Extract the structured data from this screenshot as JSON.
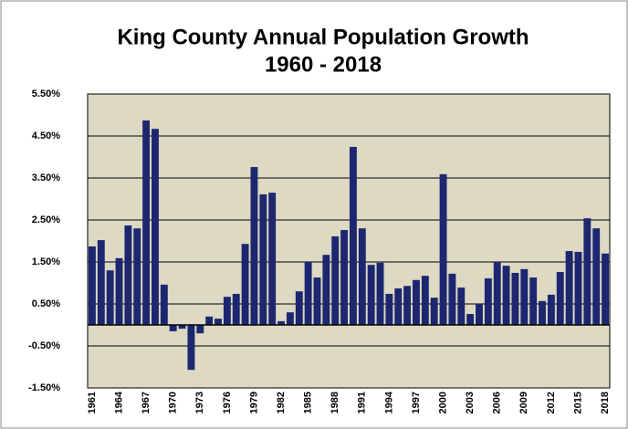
{
  "chart_data": {
    "type": "bar",
    "title": "King County Annual Population Growth",
    "subtitle": "1960 - 2018",
    "categories": [
      "1961",
      null,
      null,
      "1964",
      null,
      null,
      "1967",
      null,
      null,
      "1970",
      null,
      null,
      "1973",
      null,
      null,
      "1976",
      null,
      null,
      "1979",
      null,
      null,
      "1982",
      null,
      null,
      "1985",
      null,
      null,
      "1988",
      null,
      null,
      "1991",
      null,
      null,
      "1994",
      null,
      null,
      "1997",
      null,
      null,
      "2000",
      null,
      null,
      "2003",
      null,
      null,
      "2006",
      null,
      null,
      "2009",
      null,
      null,
      "2012",
      null,
      null,
      "2015",
      null,
      null,
      "2018"
    ],
    "values": [
      1.87,
      2.02,
      1.3,
      1.59,
      2.37,
      2.3,
      4.87,
      4.67,
      0.96,
      -0.15,
      -0.09,
      -1.07,
      -0.2,
      0.2,
      0.15,
      0.67,
      0.74,
      1.93,
      3.76,
      3.11,
      3.15,
      0.09,
      0.3,
      0.8,
      1.5,
      1.13,
      1.67,
      2.11,
      2.26,
      4.24,
      2.3,
      1.43,
      1.48,
      0.74,
      0.87,
      0.93,
      1.07,
      1.17,
      0.65,
      3.59,
      1.22,
      0.89,
      0.26,
      0.5,
      1.11,
      1.5,
      1.41,
      1.24,
      1.33,
      1.13,
      0.57,
      0.72,
      1.26,
      1.76,
      1.74,
      2.54,
      2.3,
      1.7
    ],
    "color": "#1c2770",
    "plot_background": "#ddd9c3",
    "ylim": [
      -1.5,
      5.5
    ],
    "yticks": [
      {
        "value": -1.5,
        "label": "-1.50%"
      },
      {
        "value": -0.5,
        "label": "-0.50%"
      },
      {
        "value": 0.5,
        "label": "0.50%"
      },
      {
        "value": 1.5,
        "label": "1.50%"
      },
      {
        "value": 2.5,
        "label": "2.50%"
      },
      {
        "value": 3.5,
        "label": "3.50%"
      },
      {
        "value": 4.5,
        "label": "4.50%"
      },
      {
        "value": 5.5,
        "label": "5.50%"
      }
    ],
    "grid": true
  }
}
